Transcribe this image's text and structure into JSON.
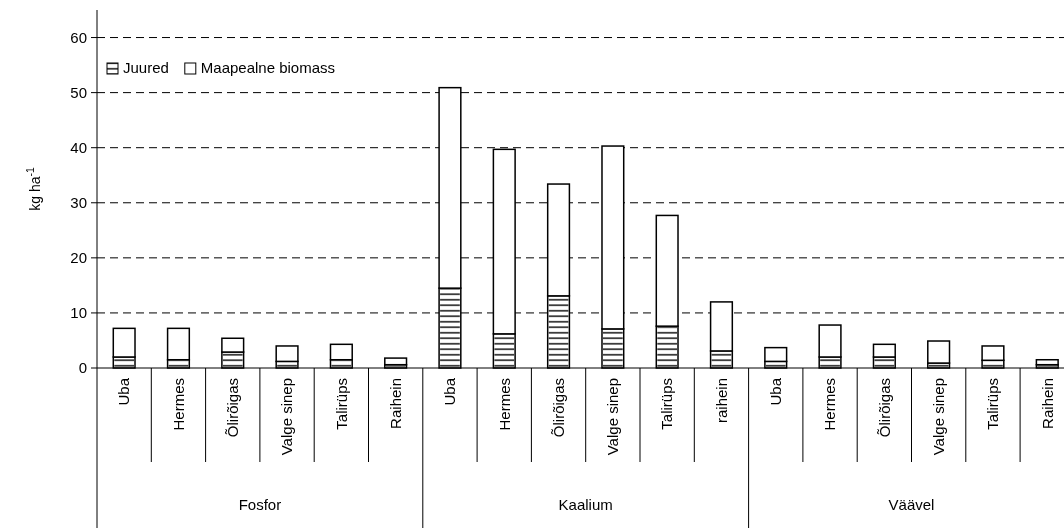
{
  "chart_data": {
    "type": "bar",
    "stacked": true,
    "ylabel": "kg ha$^{-1}$",
    "categories": [
      "Uba",
      "Hermes",
      "Õlirõigas",
      "Valge sinep",
      "Talirüps",
      "Raihein",
      "Uba",
      "Hermes",
      "Õlirõigas",
      "Valge sinep",
      "Talirüps",
      "raihein",
      "Uba",
      "Hermes",
      "Õlirõigas",
      "Valge sinep",
      "Talirüps",
      "Raihein"
    ],
    "series": [
      {
        "name": "Juured",
        "color": "#ffffff",
        "values": [
          2.0,
          1.5,
          2.9,
          1.2,
          1.5,
          0.6,
          14.5,
          6.2,
          13.1,
          7.1,
          7.6,
          3.1,
          1.2,
          2.0,
          2.0,
          0.9,
          1.4,
          0.6
        ]
      },
      {
        "name": "Maapealne biomass",
        "color": "#ffffff",
        "values": [
          5.2,
          5.7,
          2.5,
          2.8,
          2.8,
          1.2,
          36.4,
          33.5,
          20.3,
          33.2,
          20.1,
          8.9,
          2.5,
          5.8,
          2.3,
          4.0,
          2.6,
          0.9
        ]
      }
    ],
    "annotations": [
      "Fosfor",
      "Kaalium",
      "Väävel"
    ],
    "ylim": [
      0,
      65
    ],
    "yticks": [
      0,
      10,
      20,
      30,
      40,
      50,
      60
    ],
    "grid": "y",
    "legend": "top left"
  }
}
